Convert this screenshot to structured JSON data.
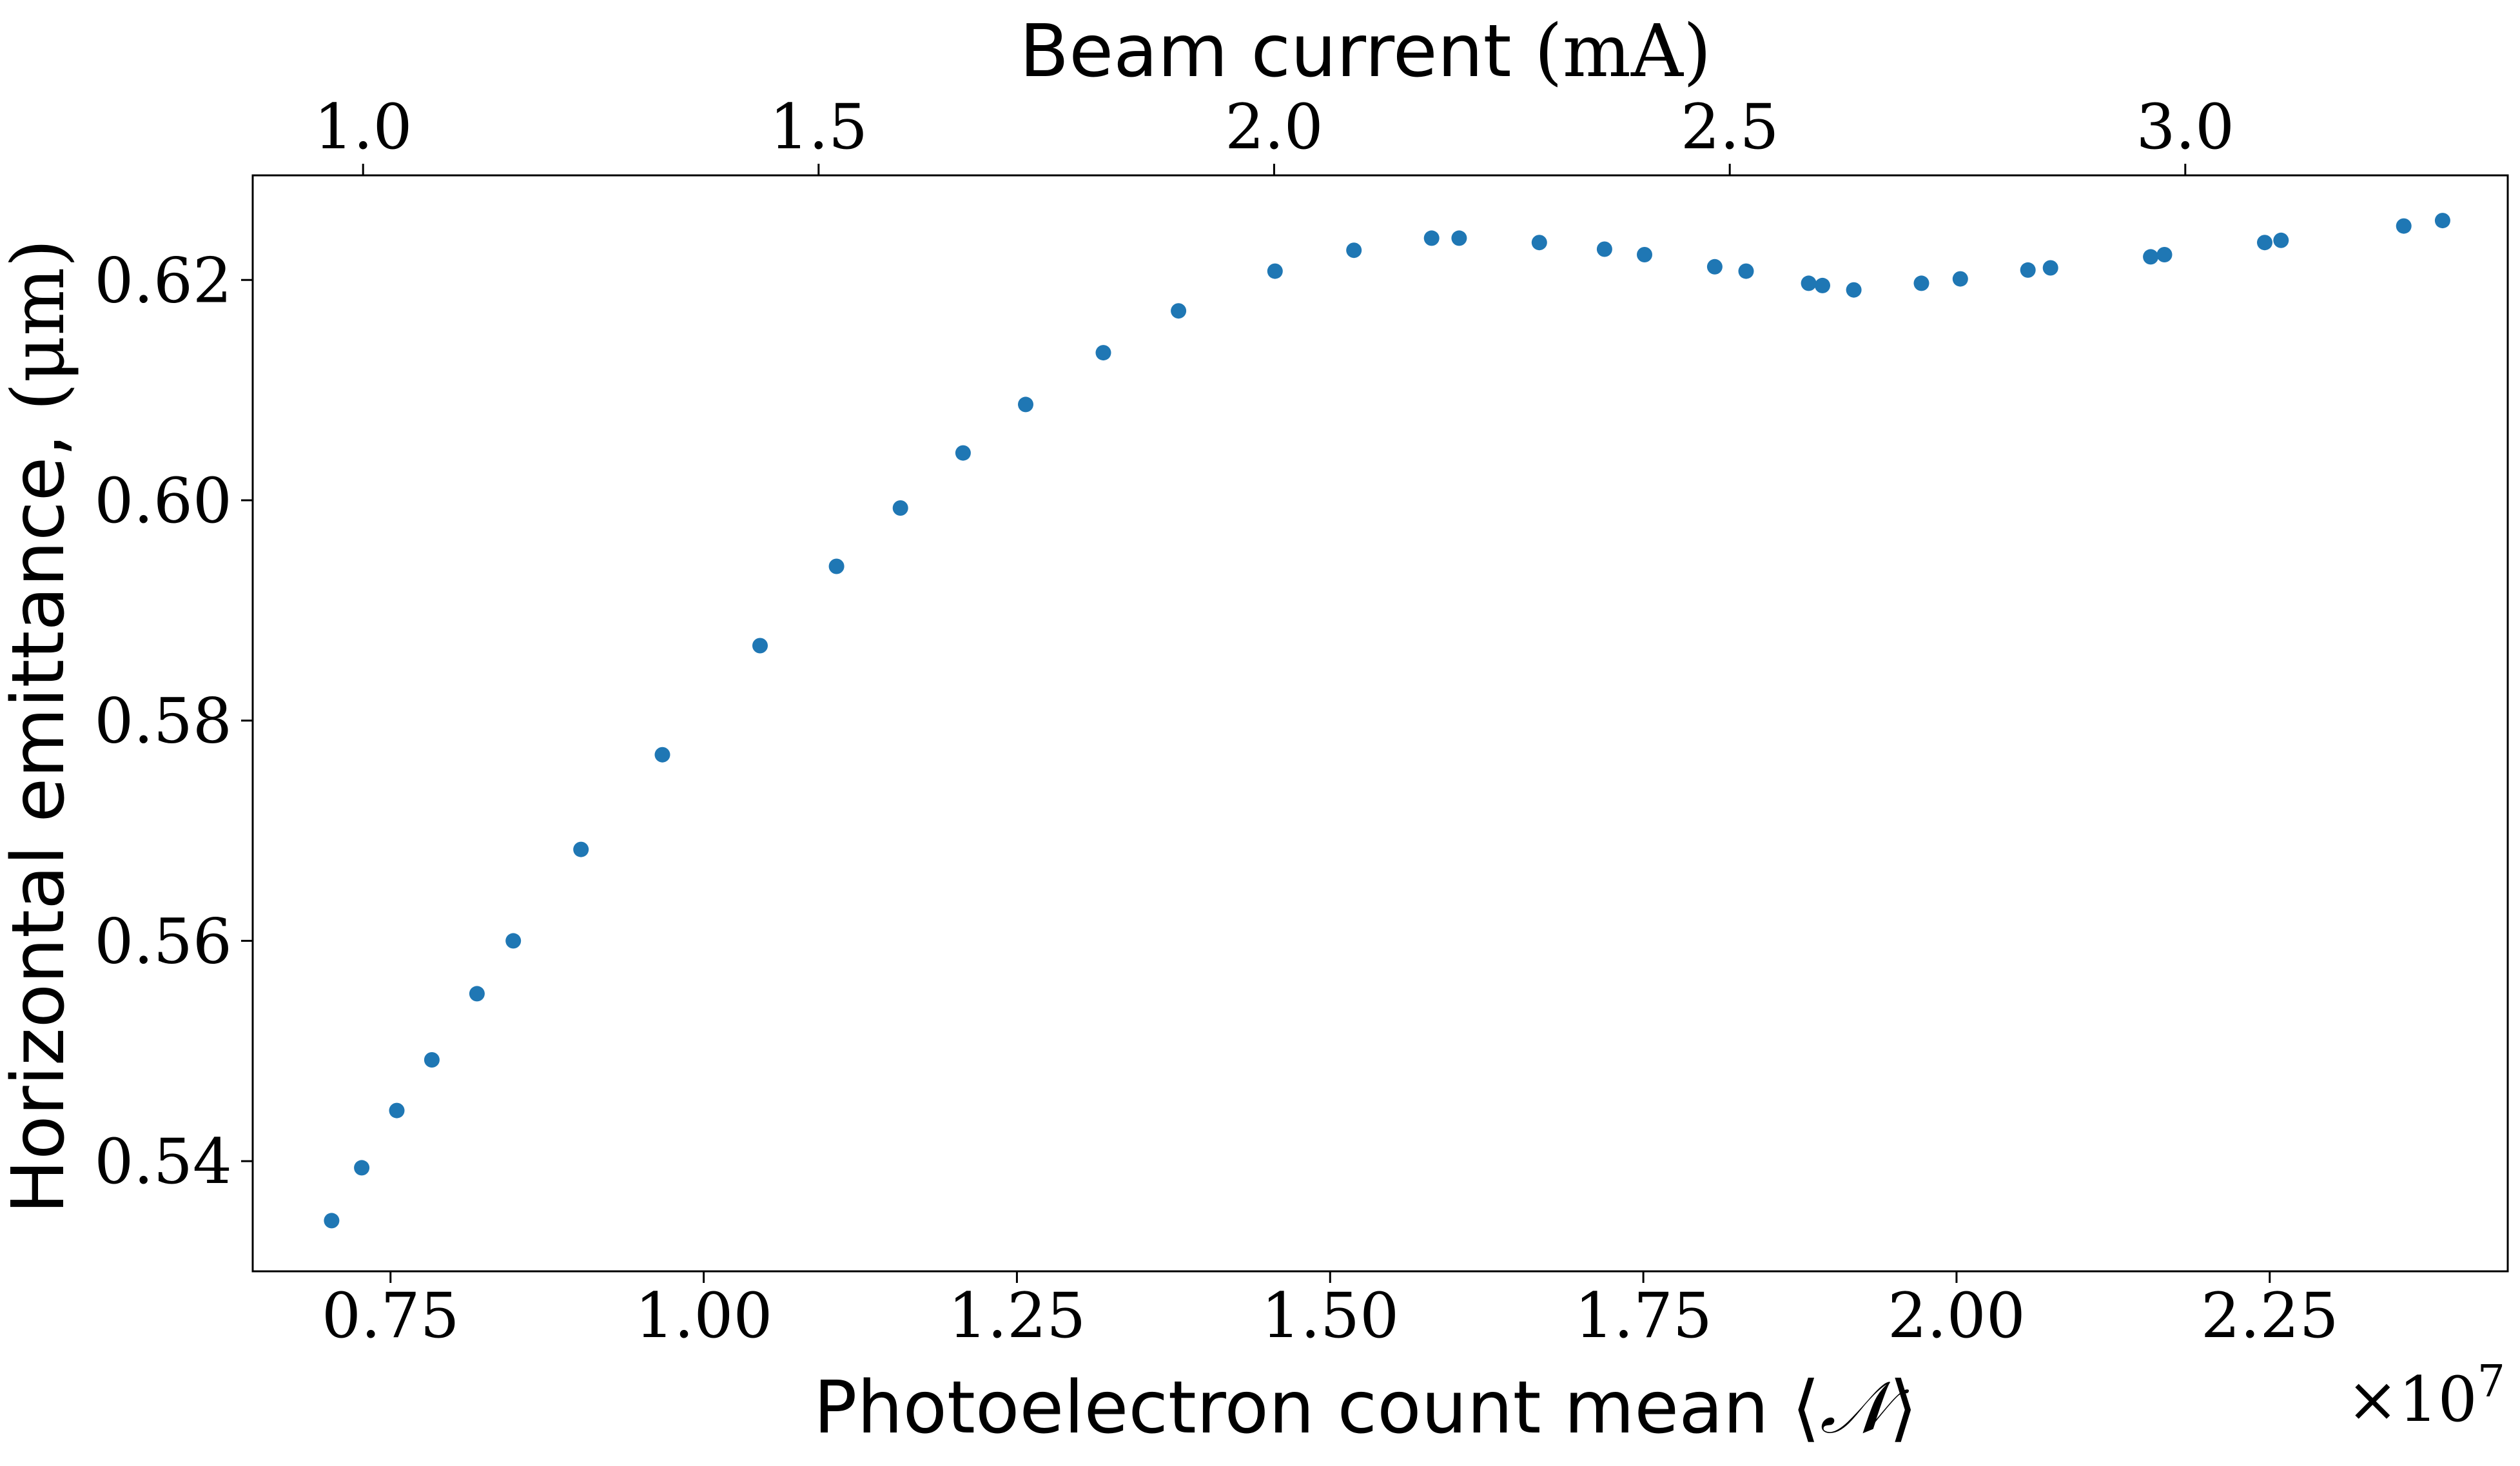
{
  "chart_data": {
    "type": "scatter",
    "xlabel": {
      "text": "Photoelectron count mean ",
      "symbol_open": "⟨",
      "symbol": "𝒩",
      "symbol_close": "⟩"
    },
    "x_offset_label": "×10",
    "x_offset_exponent": "7",
    "x_scale": 10000000,
    "xlim": [
      0.64,
      2.44
    ],
    "xticks": [
      0.75,
      1.0,
      1.25,
      1.5,
      1.75,
      2.0,
      2.25
    ],
    "xtick_labels": [
      "0.75",
      "1.00",
      "1.25",
      "1.50",
      "1.75",
      "2.00",
      "2.25"
    ],
    "top_axis": {
      "label_text": "Beam current ",
      "label_unit": "(mA)",
      "ticks": [
        1.0,
        1.5,
        2.0,
        2.5,
        3.0
      ],
      "tick_labels": [
        "1.0",
        "1.5",
        "2.0",
        "2.5",
        "3.0"
      ],
      "x_at_ticks": [
        0.7281,
        1.0917,
        1.4553,
        1.819,
        2.1826
      ]
    },
    "ylabel": {
      "text": "Horizontal emittance, ",
      "unit": "(μm)"
    },
    "ylim": [
      0.53,
      0.6295
    ],
    "yticks": [
      0.54,
      0.56,
      0.58,
      0.6,
      0.62
    ],
    "ytick_labels": [
      "0.54",
      "0.56",
      "0.58",
      "0.60",
      "0.62"
    ],
    "grid": false,
    "color": "#1f77b4",
    "points": [
      {
        "x": 0.703,
        "y": 0.5346
      },
      {
        "x": 0.727,
        "y": 0.5394
      },
      {
        "x": 0.755,
        "y": 0.5446
      },
      {
        "x": 0.783,
        "y": 0.5492
      },
      {
        "x": 0.819,
        "y": 0.5552
      },
      {
        "x": 0.848,
        "y": 0.56
      },
      {
        "x": 0.902,
        "y": 0.5683
      },
      {
        "x": 0.967,
        "y": 0.5769
      },
      {
        "x": 1.045,
        "y": 0.5868
      },
      {
        "x": 1.106,
        "y": 0.594
      },
      {
        "x": 1.157,
        "y": 0.5993
      },
      {
        "x": 1.207,
        "y": 0.6043
      },
      {
        "x": 1.257,
        "y": 0.6087
      },
      {
        "x": 1.319,
        "y": 0.6134
      },
      {
        "x": 1.379,
        "y": 0.6172
      },
      {
        "x": 1.456,
        "y": 0.6208
      },
      {
        "x": 1.519,
        "y": 0.6227
      },
      {
        "x": 1.581,
        "y": 0.6238
      },
      {
        "x": 1.603,
        "y": 0.6238
      },
      {
        "x": 1.667,
        "y": 0.6234
      },
      {
        "x": 1.719,
        "y": 0.6228
      },
      {
        "x": 1.751,
        "y": 0.6223
      },
      {
        "x": 1.807,
        "y": 0.6212
      },
      {
        "x": 1.832,
        "y": 0.6208
      },
      {
        "x": 1.882,
        "y": 0.6197
      },
      {
        "x": 1.893,
        "y": 0.6195
      },
      {
        "x": 1.918,
        "y": 0.6191
      },
      {
        "x": 1.972,
        "y": 0.6197
      },
      {
        "x": 2.003,
        "y": 0.6201
      },
      {
        "x": 2.057,
        "y": 0.6209
      },
      {
        "x": 2.075,
        "y": 0.6211
      },
      {
        "x": 2.155,
        "y": 0.6221
      },
      {
        "x": 2.166,
        "y": 0.6223
      },
      {
        "x": 2.246,
        "y": 0.6234
      },
      {
        "x": 2.259,
        "y": 0.6236
      },
      {
        "x": 2.357,
        "y": 0.6249
      },
      {
        "x": 2.388,
        "y": 0.6254
      }
    ]
  }
}
